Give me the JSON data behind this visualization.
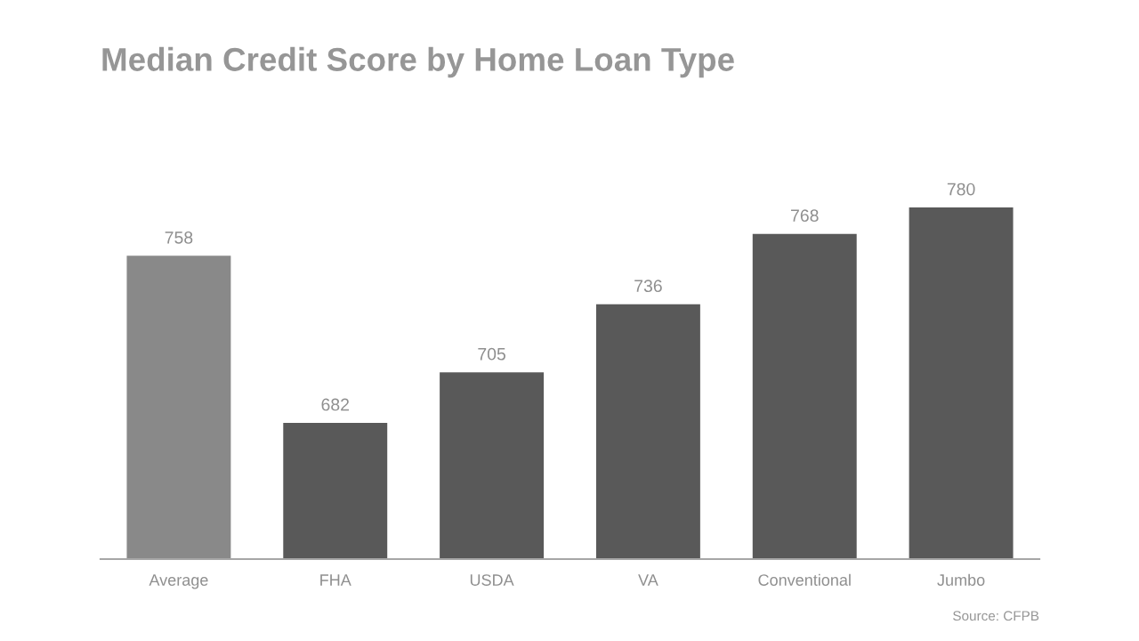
{
  "chart_data": {
    "type": "bar",
    "title": "Median Credit Score by Home Loan Type",
    "categories": [
      "Average",
      "FHA",
      "USDA",
      "VA",
      "Conventional",
      "Jumbo"
    ],
    "values": [
      758,
      682,
      705,
      736,
      768,
      780
    ],
    "colors": [
      "#898989",
      "#595959",
      "#595959",
      "#595959",
      "#595959",
      "#595959"
    ],
    "ylim": [
      620,
      780
    ],
    "tick_labels": "x",
    "data_labels": true,
    "grid": false,
    "legend": false,
    "annotations": [
      "Source: CFPB"
    ]
  }
}
